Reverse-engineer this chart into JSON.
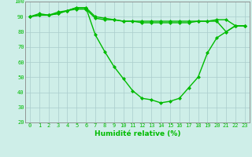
{
  "title": "",
  "xlabel": "Humidité relative (%)",
  "ylabel": "",
  "background_color": "#ceeee8",
  "grid_color": "#aacccc",
  "line_color": "#00bb00",
  "ylim": [
    20,
    100
  ],
  "xlim": [
    -0.5,
    23.5
  ],
  "yticks": [
    20,
    30,
    40,
    50,
    60,
    70,
    80,
    90,
    100
  ],
  "xticks": [
    0,
    1,
    2,
    3,
    4,
    5,
    6,
    7,
    8,
    9,
    10,
    11,
    12,
    13,
    14,
    15,
    16,
    17,
    18,
    19,
    20,
    21,
    22,
    23
  ],
  "series": [
    [
      90,
      92,
      91,
      92,
      94,
      96,
      96,
      90,
      89,
      88,
      87,
      87,
      87,
      87,
      87,
      87,
      87,
      87,
      87,
      87,
      87,
      80,
      84,
      84
    ],
    [
      90,
      91,
      91,
      92,
      94,
      96,
      96,
      78,
      67,
      57,
      49,
      41,
      36,
      35,
      33,
      34,
      36,
      43,
      50,
      66,
      76,
      80,
      84,
      84
    ],
    [
      90,
      91,
      91,
      93,
      94,
      95,
      95,
      89,
      88,
      88,
      87,
      87,
      86,
      86,
      86,
      86,
      86,
      86,
      87,
      87,
      88,
      88,
      84,
      84
    ]
  ],
  "figsize": [
    3.2,
    2.0
  ],
  "dpi": 100,
  "tick_fontsize": 5,
  "xlabel_fontsize": 6.5,
  "linewidth": 1.0,
  "markersize": 2.0
}
